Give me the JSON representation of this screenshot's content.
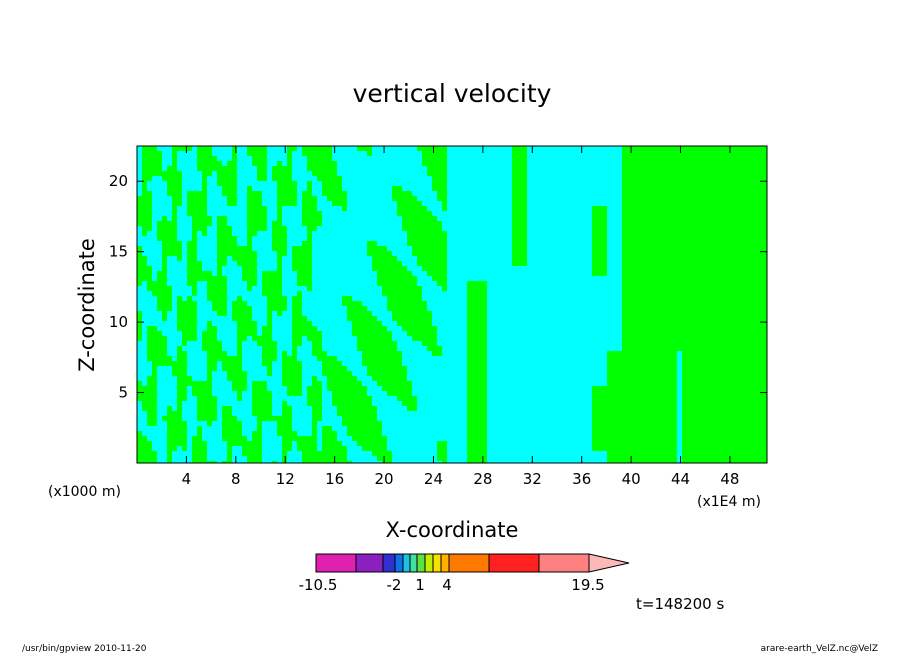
{
  "chart_data": {
    "type": "heatmap",
    "title": "vertical velocity",
    "xlabel": "X-coordinate",
    "ylabel": "Z-coordinate",
    "x_ticks": [
      "4",
      "8",
      "12",
      "16",
      "20",
      "24",
      "28",
      "32",
      "36",
      "40",
      "44",
      "48"
    ],
    "y_ticks": [
      "5",
      "10",
      "15",
      "20"
    ],
    "x_scale_label_left": "(x1000 m)",
    "x_scale_label_right": "(x1E4 m)",
    "xlim": [
      0,
      51
    ],
    "ylim": [
      0,
      22.5
    ],
    "time_label": "t=148200 s",
    "colorbar": {
      "colors": [
        "#e020b0",
        "#8a20c0",
        "#3030d0",
        "#1070e8",
        "#20c0e0",
        "#40e0a0",
        "#60e040",
        "#c0f000",
        "#f8e000",
        "#ffb000",
        "#ff7800",
        "#ff2020",
        "#ff8080",
        "#ffb8b8"
      ],
      "labels": [
        "-10.5",
        "-2",
        "1",
        "4",
        "19.5"
      ]
    },
    "field_colors": {
      "negative": "#00ffff",
      "positive": "#00ff00"
    }
  },
  "footer": {
    "left": "/usr/bin/gpview   2010-11-20",
    "right": "arare-earth_VelZ.nc@VelZ"
  }
}
